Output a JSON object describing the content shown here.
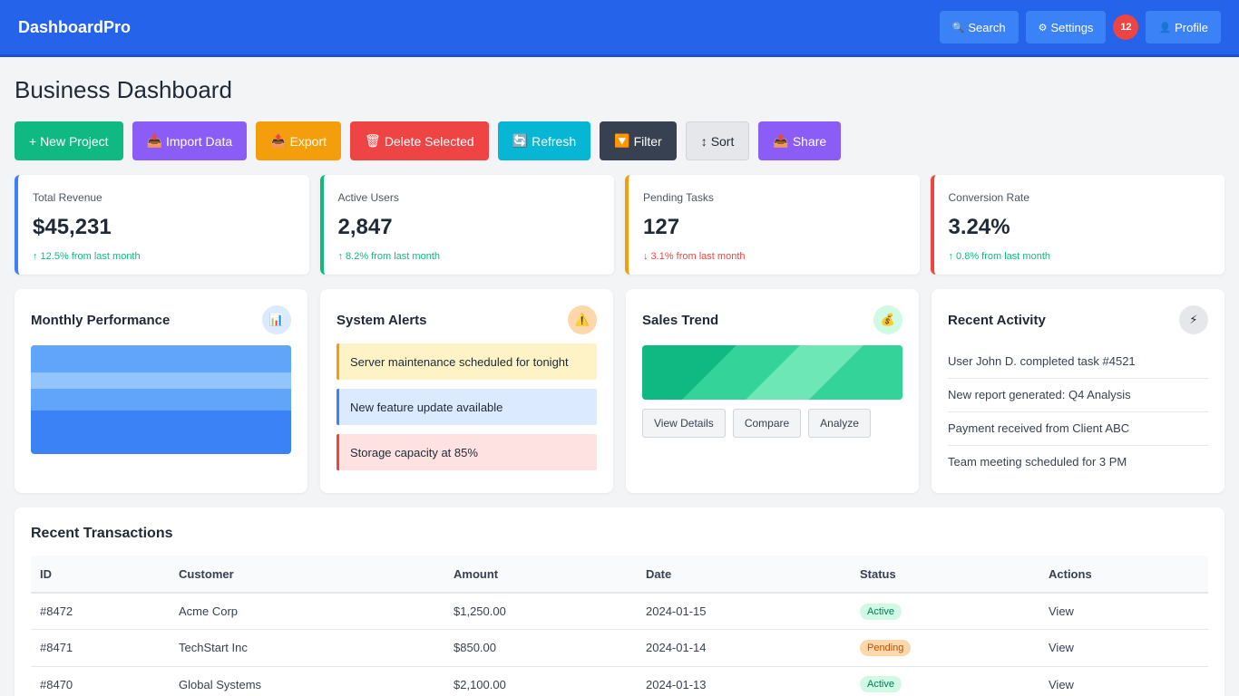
{
  "header": {
    "brand": "DashboardPro",
    "search_label": "Search",
    "settings_label": "Settings",
    "notification_count": "12",
    "profile_label": "Profile"
  },
  "page": {
    "title": "Business Dashboard"
  },
  "actions": {
    "new_project": "+ New Project",
    "import_data": "Import Data",
    "export": "Export",
    "delete_selected": "Delete Selected",
    "refresh": "Refresh",
    "filter": "Filter",
    "sort": "Sort",
    "share": "Share"
  },
  "stats": [
    {
      "label": "Total Revenue",
      "value": "$45,231",
      "change": "↑ 12.5% from last month",
      "color": "#3b82f6"
    },
    {
      "label": "Active Users",
      "value": "2,847",
      "change": "↑ 8.2% from last month",
      "color": "#10b981"
    },
    {
      "label": "Pending Tasks",
      "value": "127",
      "change": "↓ 3.1% from last month",
      "color": "#f59e0b"
    },
    {
      "label": "Conversion Rate",
      "value": "3.24%",
      "change": "↑ 0.8% from last month",
      "color": "#ef4444"
    }
  ],
  "cards": {
    "performance": {
      "title": "Monthly Performance"
    },
    "alerts": {
      "title": "System Alerts",
      "items": [
        "Server maintenance scheduled for tonight",
        "New feature update available",
        "Storage capacity at 85%"
      ]
    },
    "sales": {
      "title": "Sales Trend",
      "view_details": "View Details",
      "compare": "Compare",
      "analyze": "Analyze"
    },
    "activity": {
      "title": "Recent Activity",
      "items": [
        "User John D. completed task #4521",
        "New report generated: Q4 Analysis",
        "Payment received from Client ABC",
        "Team meeting scheduled for 3 PM"
      ]
    }
  },
  "transactions": {
    "title": "Recent Transactions",
    "columns": [
      "ID",
      "Customer",
      "Amount",
      "Date",
      "Status",
      "Actions"
    ],
    "rows": [
      {
        "id": "#8472",
        "customer": "Acme Corp",
        "amount": "$1,250.00",
        "date": "2024-01-15",
        "status": "Active",
        "action": "View"
      },
      {
        "id": "#8471",
        "customer": "TechStart Inc",
        "amount": "$850.00",
        "date": "2024-01-14",
        "status": "Pending",
        "action": "View"
      },
      {
        "id": "#8470",
        "customer": "Global Systems",
        "amount": "$2,100.00",
        "date": "2024-01-13",
        "status": "Active",
        "action": "View"
      }
    ]
  }
}
